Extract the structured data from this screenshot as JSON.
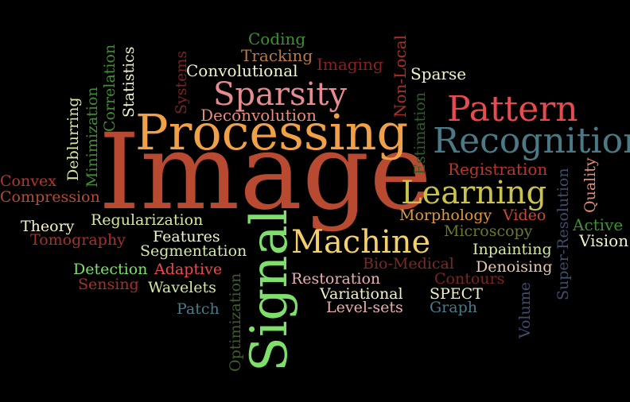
{
  "background_color": "#000000",
  "words": [
    {
      "text": "Image",
      "color": "#b84a32"
    },
    {
      "text": "Processing",
      "color": "#f0a046"
    },
    {
      "text": "Signal",
      "color": "#7ee06a"
    },
    {
      "text": "Recognition",
      "color": "#4b7a86"
    },
    {
      "text": "Pattern",
      "color": "#e84b4f"
    },
    {
      "text": "Machine",
      "color": "#f4cf6a"
    },
    {
      "text": "Learning",
      "color": "#c9c24b"
    },
    {
      "text": "Sparsity",
      "color": "#e58c90"
    },
    {
      "text": "Convolutional",
      "color": "#f2f2c8"
    },
    {
      "text": "Coding",
      "color": "#3f8f34"
    },
    {
      "text": "Tracking",
      "color": "#b97a43"
    },
    {
      "text": "Imaging",
      "color": "#8f1e1e"
    },
    {
      "text": "Sparse",
      "color": "#f2f2c8"
    },
    {
      "text": "Deconvolution",
      "color": "#e58c7a"
    },
    {
      "text": "Non-Local",
      "color": "#a8302a"
    },
    {
      "text": "Estimation",
      "color": "#2f5e2a"
    },
    {
      "text": "Registration",
      "color": "#b8362e"
    },
    {
      "text": "Quality",
      "color": "#e58c70"
    },
    {
      "text": "Super-Resolution",
      "color": "#3f4d6e"
    },
    {
      "text": "Active",
      "color": "#3f8f34"
    },
    {
      "text": "Vision",
      "color": "#f2f2c8"
    },
    {
      "text": "Morphology",
      "color": "#e09a3c"
    },
    {
      "text": "Video",
      "color": "#c44a3a"
    },
    {
      "text": "Microscopy",
      "color": "#6a7a2a"
    },
    {
      "text": "Inpainting",
      "color": "#d4e8a0"
    },
    {
      "text": "Denoising",
      "color": "#e8c8a8"
    },
    {
      "text": "Contours",
      "color": "#7a2420"
    },
    {
      "text": "Bio-Medical",
      "color": "#7a2a26"
    },
    {
      "text": "Restoration",
      "color": "#e8b0b0"
    },
    {
      "text": "Variational",
      "color": "#f2f2c8"
    },
    {
      "text": "SPECT",
      "color": "#f2f2c8"
    },
    {
      "text": "Level-sets",
      "color": "#e8b0b0"
    },
    {
      "text": "Graph",
      "color": "#4b7a86"
    },
    {
      "text": "Volume",
      "color": "#3f4d6e"
    },
    {
      "text": "Optimization",
      "color": "#3f5e2a"
    },
    {
      "text": "Wavelets",
      "color": "#d4e8a0"
    },
    {
      "text": "Patch",
      "color": "#4b7a86"
    },
    {
      "text": "Sensing",
      "color": "#a8302a"
    },
    {
      "text": "Detection",
      "color": "#7ee06a"
    },
    {
      "text": "Adaptive",
      "color": "#e84b4f"
    },
    {
      "text": "Segmentation",
      "color": "#d4e8a0"
    },
    {
      "text": "Features",
      "color": "#f2f2c8"
    },
    {
      "text": "Regularization",
      "color": "#d4e8a0"
    },
    {
      "text": "Theory",
      "color": "#f2f2c8"
    },
    {
      "text": "Tomography",
      "color": "#a8302a"
    },
    {
      "text": "Convex",
      "color": "#b8362e"
    },
    {
      "text": "Compression",
      "color": "#b84a32"
    },
    {
      "text": "Deblurring",
      "color": "#d4e8a0"
    },
    {
      "text": "Minimization",
      "color": "#3f8f34"
    },
    {
      "text": "Correlation",
      "color": "#3f8f34"
    },
    {
      "text": "Statistics",
      "color": "#f2f2c8"
    },
    {
      "text": "Systems",
      "color": "#7a2420"
    }
  ]
}
